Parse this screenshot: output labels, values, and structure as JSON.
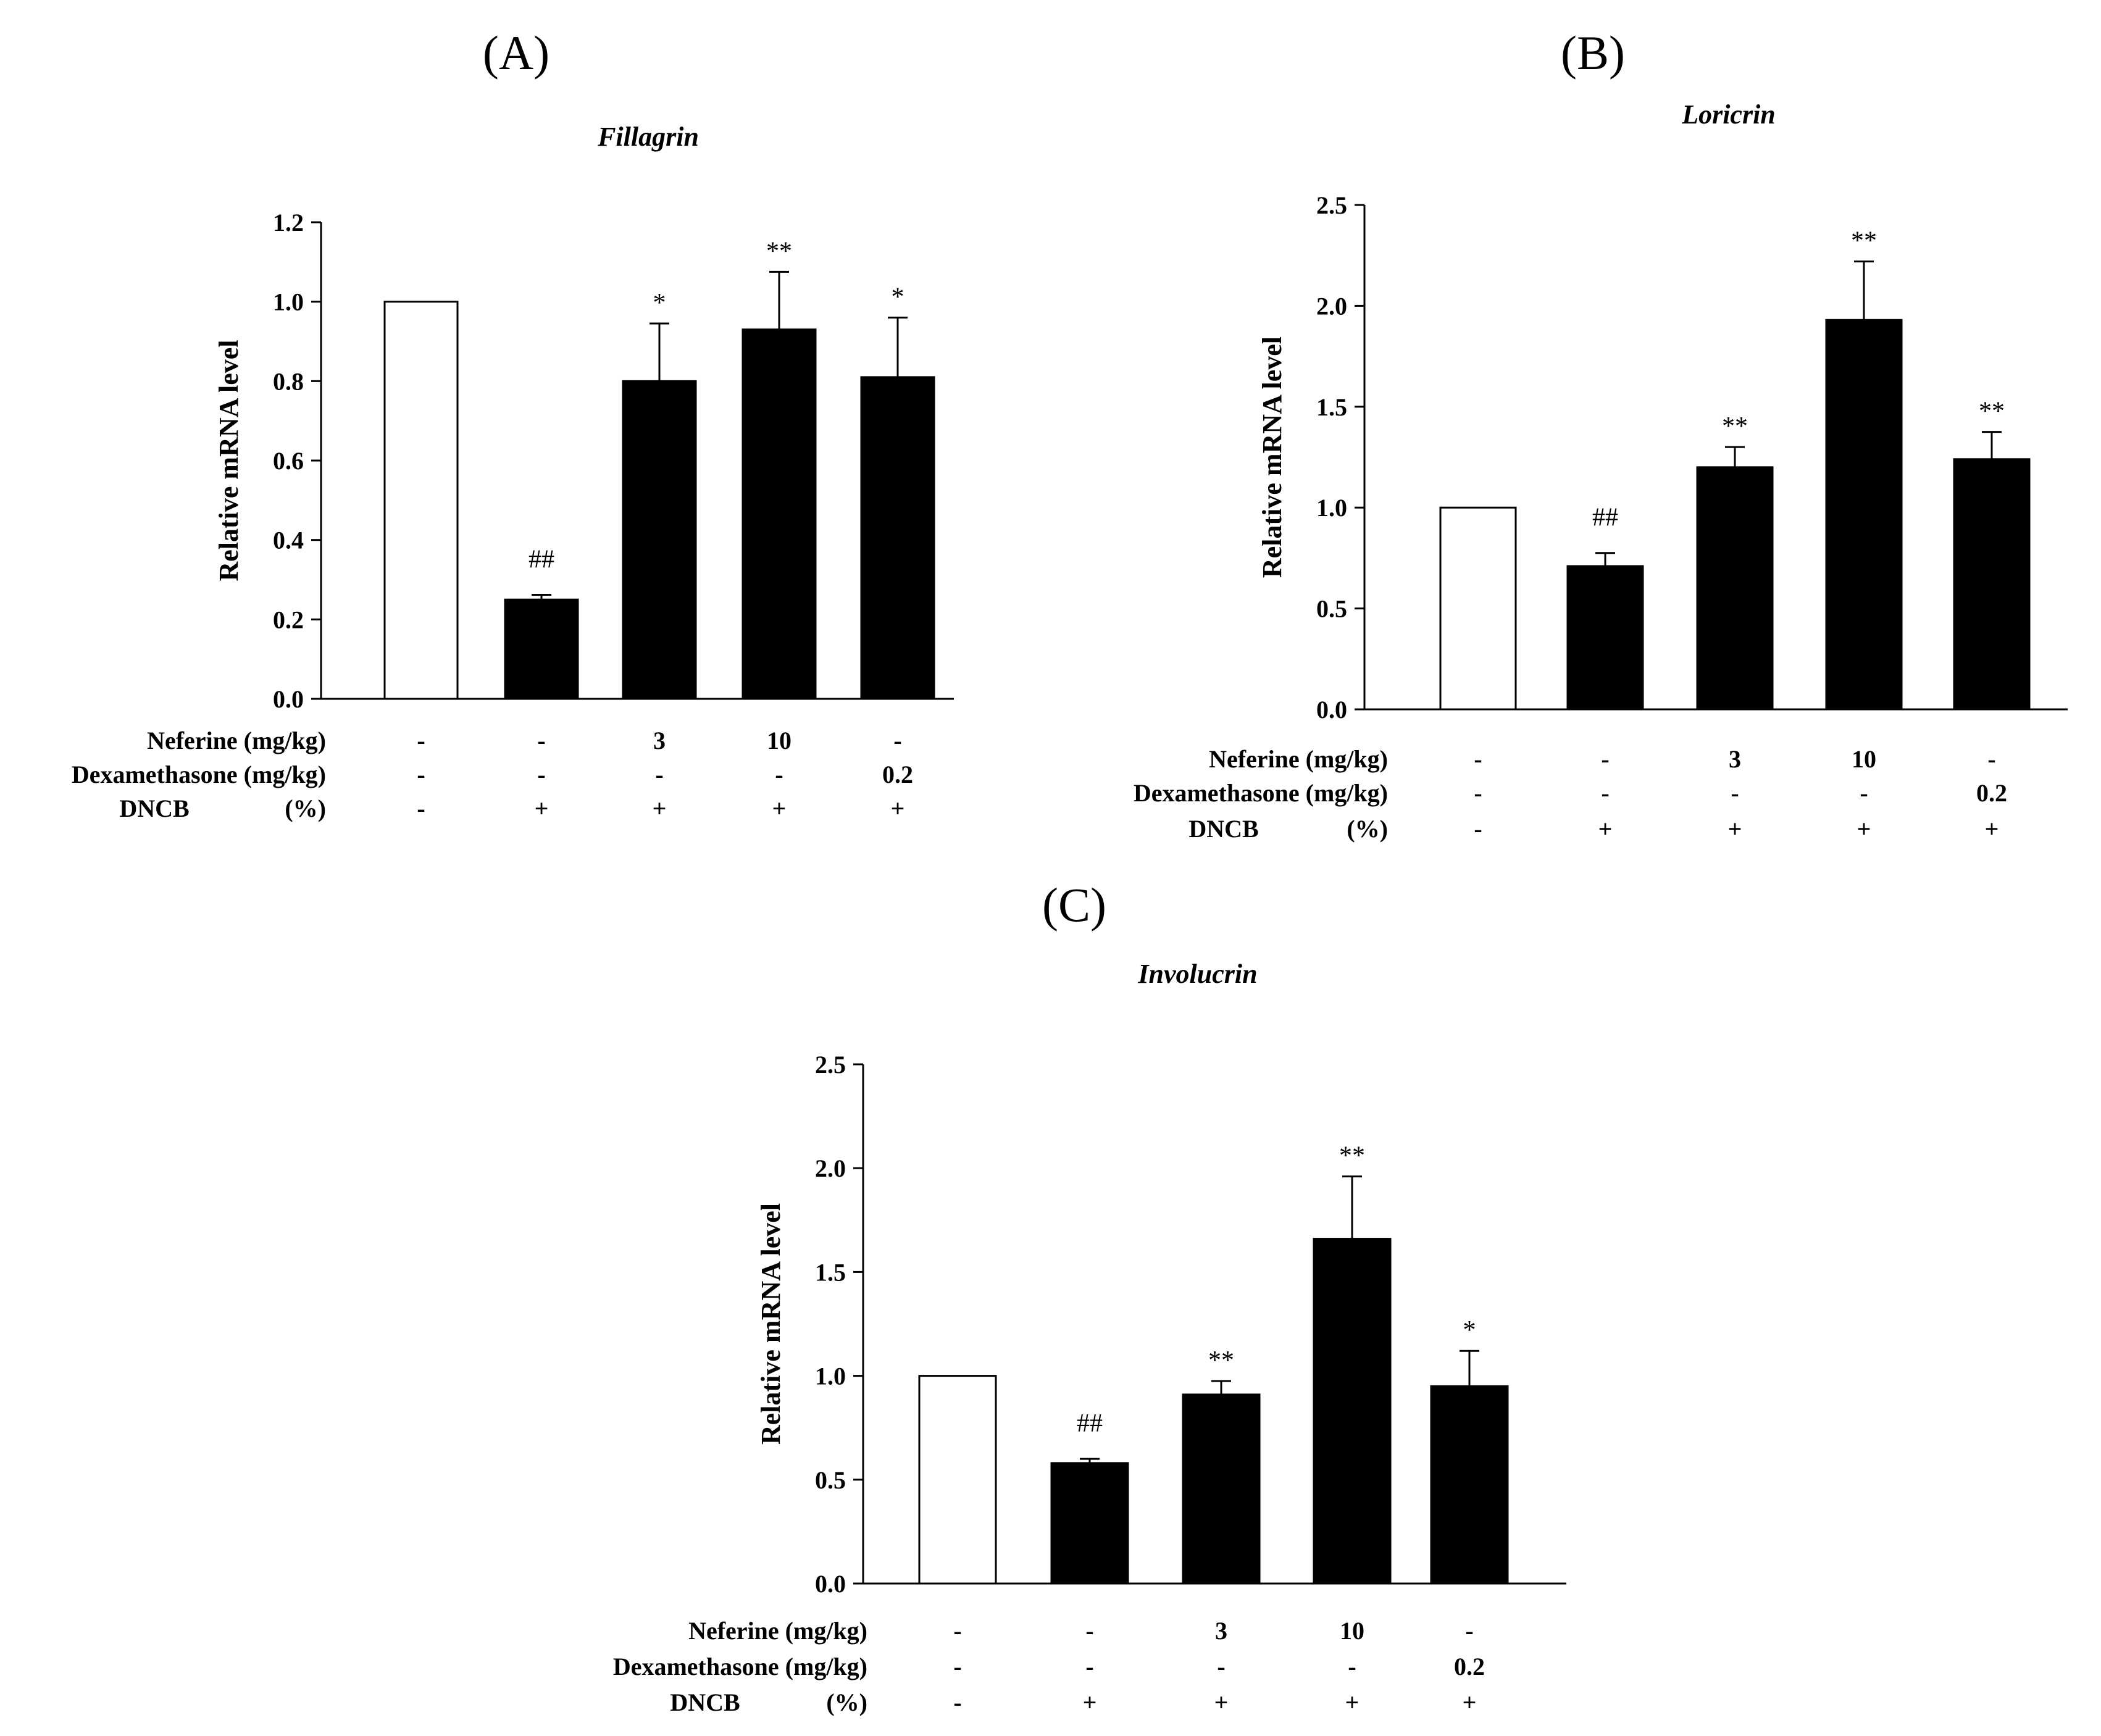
{
  "chart_data": [
    {
      "type": "bar",
      "panel": "(A)",
      "title": "Fillagrin",
      "ylabel": "Relative mRNA level",
      "ylim": [
        0,
        1.2
      ],
      "yticks": [
        "0.0",
        "0.2",
        "0.4",
        "0.6",
        "0.8",
        "1.0",
        "1.2"
      ],
      "ytick_values": [
        0,
        0.2,
        0.4,
        0.6,
        0.8,
        1.0,
        1.2
      ],
      "values": [
        1.0,
        0.25,
        0.8,
        0.93,
        0.81
      ],
      "errors": [
        0,
        0.012,
        0.145,
        0.145,
        0.15
      ],
      "fills": [
        "#ffffff",
        "#000000",
        "#000000",
        "#000000",
        "#000000"
      ],
      "significance": [
        "",
        "##",
        "*",
        "**",
        "*"
      ],
      "table": {
        "rows": [
          {
            "label": "Neferine (mg/kg)",
            "cells": [
              "-",
              "-",
              "3",
              "10",
              "-"
            ]
          },
          {
            "label": "Dexamethasone (mg/kg)",
            "cells": [
              "-",
              "-",
              "-",
              "-",
              "0.2"
            ]
          },
          {
            "label": "DNCB",
            "unit": "(%)",
            "cells": [
              "-",
              "+",
              "+",
              "+",
              "+"
            ]
          }
        ]
      }
    },
    {
      "type": "bar",
      "panel": "(B)",
      "title": "Loricrin",
      "ylabel": "Relative mRNA level",
      "ylim": [
        0,
        2.5
      ],
      "yticks": [
        "0.0",
        "0.5",
        "1.0",
        "1.5",
        "2.0",
        "2.5"
      ],
      "ytick_values": [
        0,
        0.5,
        1.0,
        1.5,
        2.0,
        2.5
      ],
      "values": [
        1.0,
        0.71,
        1.2,
        1.93,
        1.24
      ],
      "errors": [
        0,
        0.065,
        0.1,
        0.29,
        0.135
      ],
      "fills": [
        "#ffffff",
        "#000000",
        "#000000",
        "#000000",
        "#000000"
      ],
      "significance": [
        "",
        "##",
        "**",
        "**",
        "**"
      ],
      "table": {
        "rows": [
          {
            "label": "Neferine (mg/kg)",
            "cells": [
              "-",
              "-",
              "3",
              "10",
              "-"
            ]
          },
          {
            "label": "Dexamethasone (mg/kg)",
            "cells": [
              "-",
              "-",
              "-",
              "-",
              "0.2"
            ]
          },
          {
            "label": "DNCB",
            "unit": "(%)",
            "cells": [
              "-",
              "+",
              "+",
              "+",
              "+"
            ]
          }
        ]
      }
    },
    {
      "type": "bar",
      "panel": "(C)",
      "title": "Involucrin",
      "ylabel": "Relative mRNA level",
      "ylim": [
        0,
        2.5
      ],
      "yticks": [
        "0.0",
        "0.5",
        "1.0",
        "1.5",
        "2.0",
        "2.5"
      ],
      "ytick_values": [
        0,
        0.5,
        1.0,
        1.5,
        2.0,
        2.5
      ],
      "values": [
        1.0,
        0.58,
        0.91,
        1.66,
        0.95
      ],
      "errors": [
        0,
        0.02,
        0.065,
        0.3,
        0.17
      ],
      "fills": [
        "#ffffff",
        "#000000",
        "#000000",
        "#000000",
        "#000000"
      ],
      "significance": [
        "",
        "##",
        "**",
        "**",
        "*"
      ],
      "table": {
        "rows": [
          {
            "label": "Neferine (mg/kg)",
            "cells": [
              "-",
              "-",
              "3",
              "10",
              "-"
            ]
          },
          {
            "label": "Dexamethasone (mg/kg)",
            "cells": [
              "-",
              "-",
              "-",
              "-",
              "0.2"
            ]
          },
          {
            "label": "DNCB",
            "unit": "(%)",
            "cells": [
              "-",
              "+",
              "+",
              "+",
              "+"
            ]
          }
        ]
      }
    }
  ]
}
